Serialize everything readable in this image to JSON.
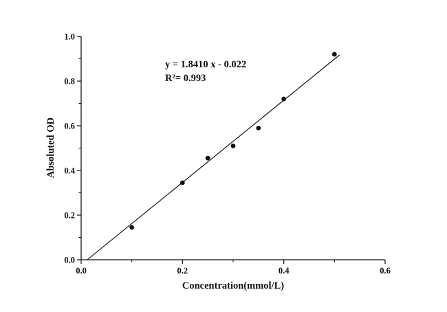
{
  "figure": {
    "background": "#ffffff",
    "ink": "#111111"
  },
  "chart_data": {
    "type": "scatter",
    "title": "",
    "xlabel": "Concentration(mmol/L)",
    "ylabel": "Absoluted OD",
    "xlim": [
      0.0,
      0.6
    ],
    "ylim": [
      0.0,
      1.0
    ],
    "grid": false,
    "x_major_ticks": [
      0.0,
      0.2,
      0.4,
      0.6
    ],
    "x_minor_ticks": [
      0.1,
      0.3,
      0.5
    ],
    "y_major_ticks": [
      0.0,
      0.2,
      0.4,
      0.6,
      0.8,
      1.0
    ],
    "y_minor_ticks": [
      0.1,
      0.3,
      0.5,
      0.7,
      0.9
    ],
    "points": [
      {
        "x": 0.1,
        "y": 0.145
      },
      {
        "x": 0.2,
        "y": 0.345
      },
      {
        "x": 0.25,
        "y": 0.455
      },
      {
        "x": 0.3,
        "y": 0.51
      },
      {
        "x": 0.35,
        "y": 0.59
      },
      {
        "x": 0.4,
        "y": 0.72
      },
      {
        "x": 0.5,
        "y": 0.92
      }
    ],
    "fit": {
      "slope": 1.841,
      "intercept": -0.022,
      "x_start": 0.012,
      "x_end": 0.51,
      "equation": "y = 1.8410 x - 0.022",
      "r_squared_label": "R²= 0.993"
    }
  }
}
